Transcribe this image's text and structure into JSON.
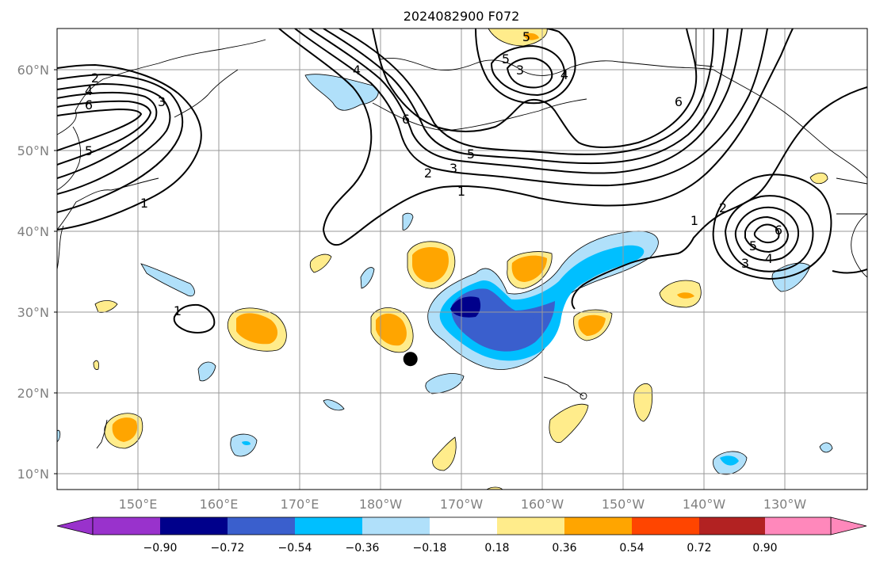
{
  "title": "2024082900 F072",
  "x_ticks": [
    "150°E",
    "160°E",
    "170°E",
    "180°W",
    "170°W",
    "160°W",
    "150°W",
    "140°W",
    "130°W"
  ],
  "y_ticks": [
    "60°N",
    "50°N",
    "40°N",
    "30°N",
    "20°N",
    "10°N"
  ],
  "colorbar": {
    "labels": [
      "−0.90",
      "−0.72",
      "−0.54",
      "−0.36",
      "−0.18",
      "0.18",
      "0.36",
      "0.54",
      "0.72",
      "0.90"
    ],
    "colors": [
      "#9932cc",
      "#00008b",
      "#3a5fcd",
      "#00bfff",
      "#b0e0fa",
      "#ffffff",
      "#ffec8b",
      "#ffa500",
      "#ff4500",
      "#b22222",
      "#ff88bb"
    ]
  },
  "contour_labels": [
    "2",
    "4",
    "6",
    "5",
    "3",
    "1",
    "2",
    "3",
    "5",
    "6",
    "1",
    "4",
    "6",
    "5",
    "3",
    "4",
    "5",
    "1",
    "2",
    "6",
    "5",
    "4",
    "3",
    "1"
  ],
  "storm_marker": {
    "lon": -176.3,
    "lat": 24.2
  }
}
